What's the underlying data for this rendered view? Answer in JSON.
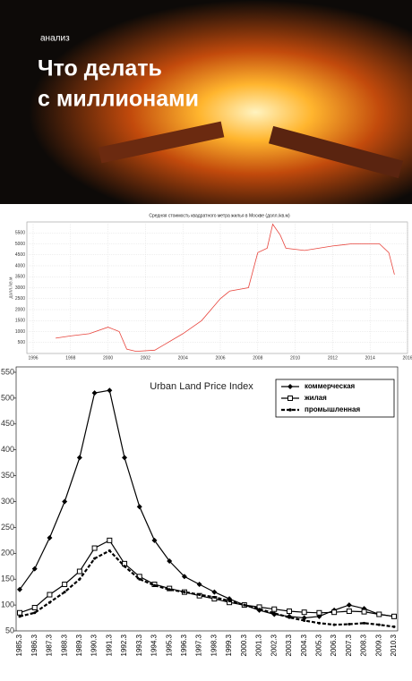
{
  "header": {
    "kicker": "анализ",
    "title_lines": [
      "Что делать",
      "с миллионами"
    ]
  },
  "chart_data": [
    {
      "type": "line",
      "title": "Средняя стоимость квадратного метра жилья в Москве (долл./кв.м)",
      "y_label": "долл./кв.м",
      "x": [
        1997.2,
        1998,
        1999,
        2000,
        2000.6,
        2001,
        2001.5,
        2002.5,
        2003,
        2004,
        2005,
        2006,
        2006.5,
        2007.5,
        2008,
        2008.5,
        2008.8,
        2009.2,
        2009.5,
        2010.5,
        2012,
        2013,
        2014.5,
        2015,
        2015.3
      ],
      "series": [
        {
          "name": "Средняя стоимость",
          "color": "#e8443c",
          "values": [
            700,
            800,
            900,
            1200,
            1000,
            200,
            100,
            150,
            400,
            900,
            1500,
            2500,
            2850,
            3000,
            4600,
            4800,
            5900,
            5400,
            4800,
            4700,
            4900,
            5000,
            5000,
            4600,
            3600
          ]
        }
      ],
      "xlim": [
        1996,
        2016
      ],
      "xticks": [
        1996,
        1998,
        2000,
        2002,
        2004,
        2006,
        2008,
        2010,
        2012,
        2014,
        2016
      ],
      "ylim": [
        0,
        6000
      ],
      "yticks": [
        500,
        1000,
        1500,
        2000,
        2500,
        3000,
        3500,
        4000,
        4500,
        5000,
        5500
      ],
      "grid": true
    },
    {
      "type": "line",
      "title": "Urban Land Price Index",
      "categories": [
        "1985.3",
        "1986.3",
        "1987.3",
        "1988.3",
        "1989.3",
        "1990.3",
        "1991.3",
        "1992.3",
        "1993.3",
        "1994.3",
        "1995.3",
        "1996.3",
        "1997.3",
        "1998.3",
        "1999.3",
        "2000.3",
        "2001.3",
        "2002.3",
        "2003.3",
        "2004.3",
        "2005.3",
        "2006.3",
        "2007.3",
        "2008.3",
        "2009.3",
        "2010.3"
      ],
      "series": [
        {
          "name": "коммерческая",
          "color": "#000000",
          "marker": "diamond",
          "values": [
            130,
            170,
            230,
            300,
            385,
            510,
            515,
            385,
            290,
            225,
            185,
            155,
            140,
            125,
            112,
            100,
            90,
            82,
            78,
            75,
            78,
            90,
            100,
            93,
            82,
            78
          ]
        },
        {
          "name": "жилая",
          "color": "#000000",
          "marker": "square",
          "values": [
            85,
            95,
            120,
            140,
            165,
            210,
            225,
            180,
            155,
            140,
            132,
            125,
            118,
            112,
            105,
            100,
            96,
            92,
            88,
            86,
            85,
            86,
            88,
            87,
            82,
            78
          ]
        },
        {
          "name": "промышленная",
          "color": "#000000",
          "marker": "dot",
          "dashed": true,
          "values": [
            78,
            85,
            105,
            125,
            150,
            190,
            205,
            175,
            150,
            138,
            130,
            125,
            120,
            115,
            108,
            100,
            92,
            84,
            76,
            70,
            65,
            62,
            63,
            65,
            62,
            58
          ]
        }
      ],
      "ylim": [
        50,
        550
      ],
      "yticks": [
        50,
        100,
        150,
        200,
        250,
        300,
        350,
        400,
        450,
        500,
        550
      ],
      "legend": "upper right",
      "grid": false
    }
  ]
}
